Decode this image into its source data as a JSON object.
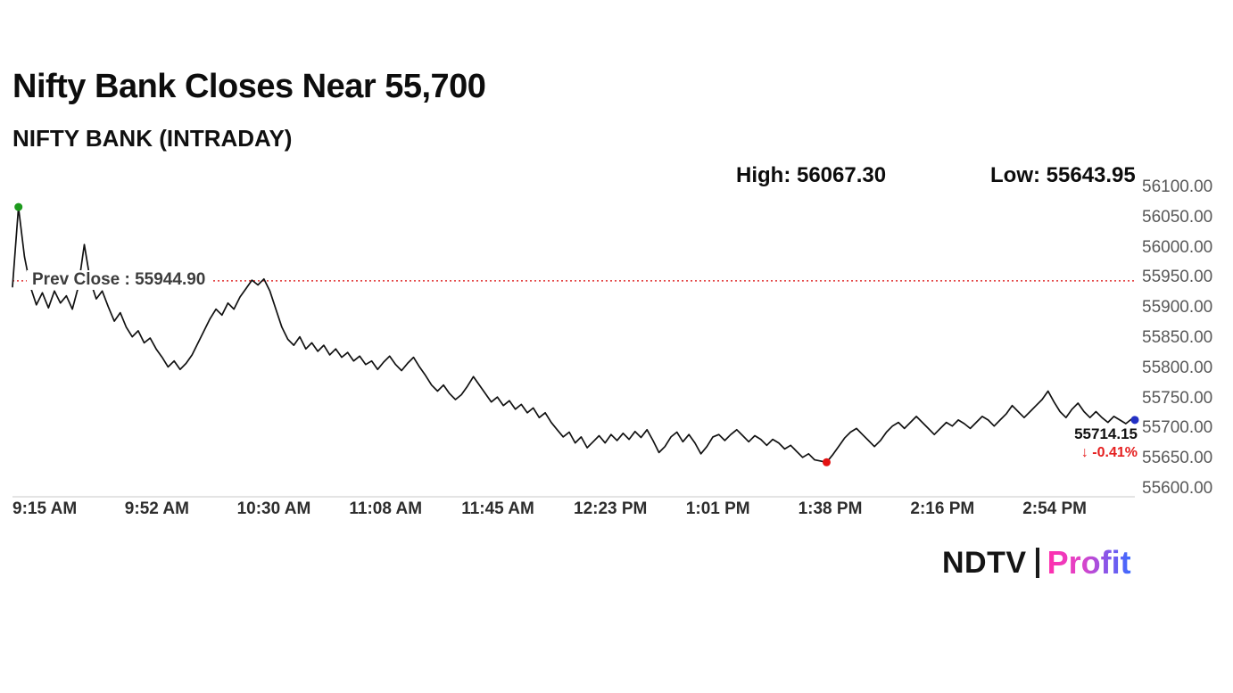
{
  "chart_data": {
    "type": "line",
    "title": "Nifty Bank Closes Near 55,700",
    "subtitle": "NIFTY BANK (INTRADAY)",
    "high_label": "High: 56067.30",
    "low_label": "Low: 55643.95",
    "high": 56067.3,
    "low": 55643.95,
    "prev_close": 55944.9,
    "prev_close_label": "Prev Close : 55944.90",
    "last": 55714.15,
    "last_label": "55714.15",
    "change_label": "↓ -0.41%",
    "x_start_minute": 0,
    "x_end_minute": 375,
    "sample_interval_minutes": 2,
    "x_tick_labels": [
      "9:15 AM",
      "9:52 AM",
      "10:30 AM",
      "11:08 AM",
      "11:45 AM",
      "12:23 PM",
      "1:01 PM",
      "1:38 PM",
      "2:16 PM",
      "2:54 PM"
    ],
    "y_ticks": [
      "56100.00",
      "56050.00",
      "56000.00",
      "55950.00",
      "55900.00",
      "55850.00",
      "55800.00",
      "55750.00",
      "55700.00",
      "55650.00",
      "55600.00"
    ],
    "ylim": [
      55600,
      56100
    ],
    "grid": false,
    "legend": false,
    "line_color": "#111111",
    "prev_close_color": "#e03131",
    "axis_line_color": "#c9c9c9",
    "markers": [
      {
        "name": "high-marker",
        "minute": 2,
        "value": 56067.3,
        "color": "#1d9a1d"
      },
      {
        "name": "low-marker",
        "minute": 272,
        "value": 55643.95,
        "color": "#e31212"
      },
      {
        "name": "last-marker",
        "minute": 375,
        "value": 55714.15,
        "color": "#2330c4"
      }
    ],
    "values": [
      55935,
      56067,
      55985,
      55935,
      55905,
      55925,
      55900,
      55928,
      55908,
      55920,
      55898,
      55935,
      56005,
      55945,
      55915,
      55928,
      55902,
      55878,
      55892,
      55868,
      55852,
      55862,
      55842,
      55850,
      55832,
      55818,
      55802,
      55812,
      55798,
      55808,
      55822,
      55842,
      55862,
      55882,
      55898,
      55888,
      55908,
      55898,
      55918,
      55932,
      55946,
      55938,
      55948,
      55928,
      55898,
      55868,
      55848,
      55838,
      55852,
      55832,
      55842,
      55828,
      55838,
      55822,
      55832,
      55818,
      55826,
      55812,
      55820,
      55806,
      55812,
      55798,
      55810,
      55820,
      55806,
      55796,
      55808,
      55818,
      55802,
      55788,
      55772,
      55762,
      55772,
      55758,
      55748,
      55756,
      55770,
      55786,
      55772,
      55758,
      55744,
      55752,
      55738,
      55746,
      55732,
      55740,
      55726,
      55734,
      55718,
      55726,
      55710,
      55698,
      55686,
      55694,
      55676,
      55686,
      55668,
      55678,
      55688,
      55676,
      55690,
      55680,
      55692,
      55682,
      55695,
      55685,
      55698,
      55680,
      55660,
      55670,
      55686,
      55694,
      55678,
      55690,
      55676,
      55658,
      55670,
      55686,
      55690,
      55680,
      55690,
      55698,
      55688,
      55678,
      55688,
      55682,
      55672,
      55682,
      55676,
      55666,
      55672,
      55662,
      55652,
      55658,
      55648,
      55646,
      55644,
      55656,
      55670,
      55684,
      55694,
      55700,
      55690,
      55680,
      55670,
      55680,
      55694,
      55704,
      55710,
      55700,
      55710,
      55720,
      55710,
      55700,
      55690,
      55700,
      55710,
      55704,
      55714,
      55708,
      55700,
      55710,
      55720,
      55714,
      55704,
      55714,
      55724,
      55738,
      55728,
      55718,
      55728,
      55738,
      55748,
      55762,
      55744,
      55728,
      55718,
      55732,
      55742,
      55728,
      55718,
      55728,
      55718,
      55710,
      55720,
      55714,
      55708,
      55716,
      55714.15
    ]
  },
  "logo": {
    "ndtv": "NDTV",
    "separator": "|",
    "profit": "Profit"
  }
}
